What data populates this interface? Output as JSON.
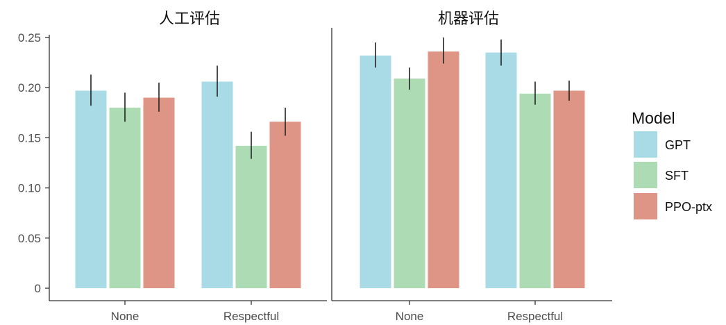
{
  "chart_data": {
    "type": "bar",
    "categories": [
      "None",
      "Respectful"
    ],
    "ylim": [
      0,
      0.25
    ],
    "y_ticks": [
      "0",
      "0.05",
      "0.10",
      "0.15",
      "0.20",
      "0.25"
    ],
    "grid": false,
    "legend_placement": "right",
    "legend_title": "Model",
    "colors": {
      "GPT": "#a8dbe6",
      "SFT": "#addcb4",
      "PPO-ptx": "#df9585"
    },
    "panels": [
      {
        "title": "人工评估",
        "series": [
          {
            "name": "GPT",
            "values": [
              0.197,
              0.206
            ],
            "err_low": [
              0.182,
              0.191
            ],
            "err_high": [
              0.213,
              0.222
            ]
          },
          {
            "name": "SFT",
            "values": [
              0.18,
              0.142
            ],
            "err_low": [
              0.166,
              0.129
            ],
            "err_high": [
              0.195,
              0.156
            ]
          },
          {
            "name": "PPO-ptx",
            "values": [
              0.19,
              0.166
            ],
            "err_low": [
              0.176,
              0.152
            ],
            "err_high": [
              0.205,
              0.18
            ]
          }
        ]
      },
      {
        "title": "机器评估",
        "series": [
          {
            "name": "GPT",
            "values": [
              0.232,
              0.235
            ],
            "err_low": [
              0.22,
              0.222
            ],
            "err_high": [
              0.245,
              0.248
            ]
          },
          {
            "name": "SFT",
            "values": [
              0.209,
              0.194
            ],
            "err_low": [
              0.198,
              0.183
            ],
            "err_high": [
              0.22,
              0.206
            ]
          },
          {
            "name": "PPO-ptx",
            "values": [
              0.236,
              0.197
            ],
            "err_low": [
              0.224,
              0.187
            ],
            "err_high": [
              0.25,
              0.207
            ]
          }
        ]
      }
    ]
  }
}
